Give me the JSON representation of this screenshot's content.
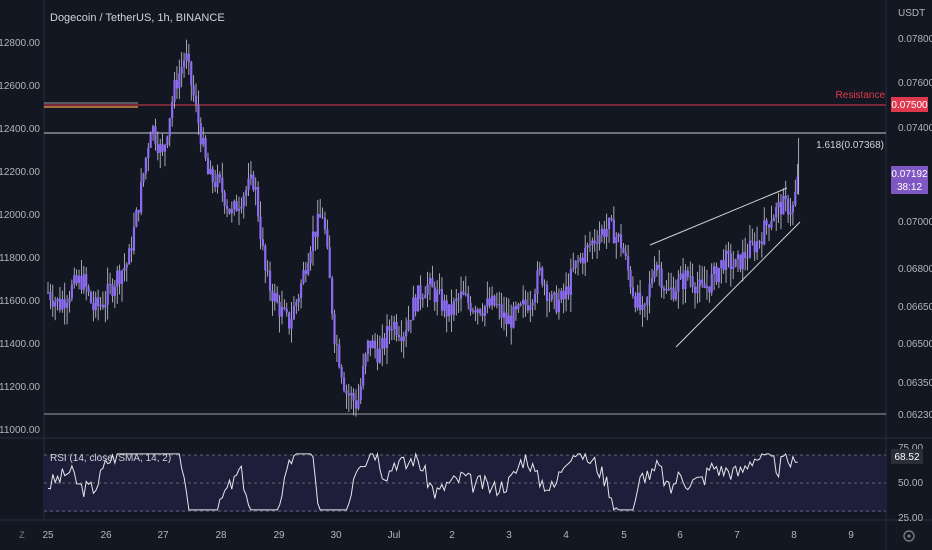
{
  "header": {
    "title": "Dogecoin / TetherUS, 1h, BINANCE"
  },
  "right_axis": {
    "unit": "USDT",
    "ticks": [
      "0.07800",
      "0.07600",
      "0.07400",
      "0.07000",
      "0.06800",
      "0.06650",
      "0.06500",
      "0.06350",
      "0.06230"
    ]
  },
  "left_axis": {
    "ticks": [
      "12800.00",
      "12600.00",
      "12400.00",
      "12200.00",
      "12000.00",
      "11800.00",
      "11600.00",
      "11400.00",
      "11200.00",
      "11000.00"
    ]
  },
  "x_axis": {
    "ticks": [
      "25",
      "26",
      "27",
      "28",
      "29",
      "30",
      "Jul",
      "2",
      "3",
      "4",
      "5",
      "6",
      "7",
      "8",
      "9"
    ]
  },
  "annotations": {
    "resistance_label": "Resistance",
    "resistance_value": "0.07500",
    "fib_label": "1.618(0.07368)",
    "price_value": "0.07192",
    "countdown": "38:12"
  },
  "rsi": {
    "label": "RSI (14, close, SMA, 14, 2)",
    "ticks": [
      "75.00",
      "50.00",
      "25.00"
    ],
    "value": "68.52"
  },
  "nav": {
    "left_icon_label": "Z"
  },
  "colors": {
    "background": "#131722",
    "candle": "#8b6cf0",
    "wick": "#c8c6d6",
    "resistance": "#e0394e",
    "price_badge": "#7e57c2",
    "rsi_band": "#1e1e3a"
  },
  "chart_data": {
    "type": "candlestick",
    "title": "Dogecoin / TetherUS, 1h, BINANCE",
    "x_ticks": [
      "25",
      "26",
      "27",
      "28",
      "29",
      "30",
      "Jul",
      "2",
      "3",
      "4",
      "5",
      "6",
      "7",
      "8",
      "9"
    ],
    "y_axis_right": [
      0.078,
      0.076,
      0.074,
      0.07,
      0.068,
      0.0665,
      0.065,
      0.0635,
      0.0623
    ],
    "y_axis_left": [
      12800,
      12600,
      12400,
      12200,
      12000,
      11800,
      11600,
      11400,
      11200,
      11000
    ],
    "close_path": [
      [
        25.0,
        0.0671
      ],
      [
        25.2,
        0.0666
      ],
      [
        25.4,
        0.0672
      ],
      [
        25.6,
        0.0676
      ],
      [
        25.8,
        0.0664
      ],
      [
        26.0,
        0.0668
      ],
      [
        26.2,
        0.0677
      ],
      [
        26.4,
        0.0683
      ],
      [
        26.6,
        0.071
      ],
      [
        26.8,
        0.0742
      ],
      [
        27.0,
        0.0728
      ],
      [
        27.2,
        0.0757
      ],
      [
        27.4,
        0.0773
      ],
      [
        27.6,
        0.0746
      ],
      [
        27.8,
        0.0719
      ],
      [
        28.0,
        0.0716
      ],
      [
        28.2,
        0.0703
      ],
      [
        28.4,
        0.0712
      ],
      [
        28.6,
        0.0718
      ],
      [
        28.8,
        0.0677
      ],
      [
        29.0,
        0.0666
      ],
      [
        29.2,
        0.0658
      ],
      [
        29.4,
        0.0672
      ],
      [
        29.6,
        0.0693
      ],
      [
        29.8,
        0.0704
      ],
      [
        30.0,
        0.0654
      ],
      [
        30.2,
        0.0632
      ],
      [
        30.4,
        0.0627
      ],
      [
        30.6,
        0.0651
      ],
      [
        30.8,
        0.0646
      ],
      [
        31.0,
        0.0659
      ],
      [
        31.2,
        0.0655
      ],
      [
        31.4,
        0.0667
      ],
      [
        31.6,
        0.0674
      ],
      [
        31.8,
        0.0669
      ],
      [
        32.0,
        0.0662
      ],
      [
        32.2,
        0.0669
      ],
      [
        32.4,
        0.0666
      ],
      [
        32.6,
        0.0665
      ],
      [
        32.8,
        0.0666
      ],
      [
        33.0,
        0.0659
      ],
      [
        33.2,
        0.0662
      ],
      [
        33.4,
        0.0668
      ],
      [
        33.6,
        0.0679
      ],
      [
        33.8,
        0.0666
      ],
      [
        34.0,
        0.0668
      ],
      [
        34.2,
        0.0681
      ],
      [
        34.4,
        0.0688
      ],
      [
        34.6,
        0.0695
      ],
      [
        34.8,
        0.0698
      ],
      [
        35.0,
        0.0691
      ],
      [
        35.2,
        0.0672
      ],
      [
        35.4,
        0.066
      ],
      [
        35.6,
        0.0685
      ],
      [
        35.8,
        0.067
      ],
      [
        36.0,
        0.0674
      ],
      [
        36.2,
        0.0678
      ],
      [
        36.4,
        0.0671
      ],
      [
        36.6,
        0.0676
      ],
      [
        36.8,
        0.0684
      ],
      [
        37.0,
        0.0681
      ],
      [
        37.2,
        0.0687
      ],
      [
        37.4,
        0.0692
      ],
      [
        37.6,
        0.0702
      ],
      [
        37.8,
        0.0707
      ],
      [
        38.0,
        0.0706
      ],
      [
        38.1,
        0.0719
      ]
    ],
    "rsi_range": [
      25,
      75
    ],
    "rsi_last": 68.52,
    "annotations": {
      "resistance": {
        "label": "Resistance",
        "value": 0.075
      },
      "fib_1_618": {
        "label": "1.618(0.07368)",
        "value": 0.07368
      },
      "last_price": 0.07192
    }
  }
}
